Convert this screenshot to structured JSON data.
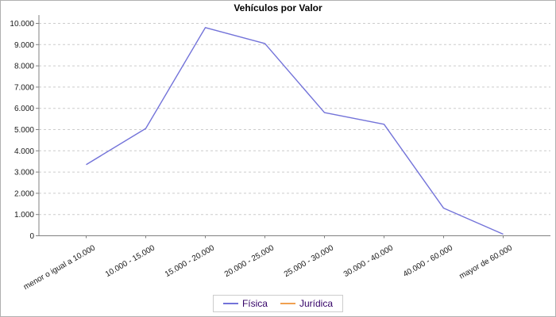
{
  "chart_data": {
    "type": "line",
    "title": "Vehículos por Valor",
    "categories": [
      "menor o igual a 10.000",
      "10.000 - 15.000",
      "15.000 - 20.000",
      "20.000 - 25.000",
      "25.000 - 30.000",
      "30.000 - 40.000",
      "40.000 - 60.000",
      "mayor de 60.000"
    ],
    "series": [
      {
        "name": "Física",
        "color": "#7373d9",
        "values": [
          3350,
          5050,
          9800,
          9050,
          5800,
          5250,
          1300,
          75
        ]
      },
      {
        "name": "Jurídica",
        "color": "#f0a050",
        "values": [],
        "line_visible": false
      }
    ],
    "xlabel": "",
    "ylabel": "",
    "ylim": [
      0,
      10000
    ],
    "ytick_interval": 1000,
    "ytick_labels": [
      "0",
      "1.000",
      "2.000",
      "3.000",
      "4.000",
      "5.000",
      "6.000",
      "7.000",
      "8.000",
      "9.000",
      "10.000"
    ],
    "grid": "horizontal dashed",
    "legend_position": "bottom-center",
    "x_label_rotation_deg": -30
  },
  "colors": {
    "grid": "#cccccc",
    "axis": "#808080",
    "tick_text": "#1a1a1a",
    "legend_text": "#330066",
    "legend_border": "#cccccc",
    "background": "#ffffff"
  }
}
